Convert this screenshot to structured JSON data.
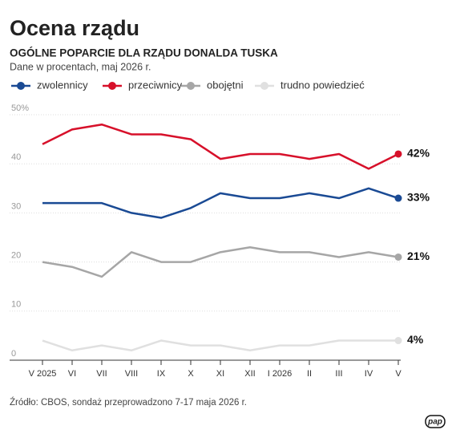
{
  "chart_data": {
    "type": "line",
    "title": "Ocena rządu",
    "subtitle": "OGÓLNE POPARCIE DLA RZĄDU DONALDA TUSKA",
    "note": "Dane w procentach, maj 2026 r.",
    "source": "Źródło: CBOS, sondaż przeprowadzono 7-17 maja 2026 r.",
    "logo": "pap",
    "categories": [
      "V 2025",
      "VI",
      "VII",
      "VIII",
      "IX",
      "X",
      "XI",
      "XII",
      "I 2026",
      "II",
      "III",
      "IV",
      "V"
    ],
    "series": [
      {
        "name": "zwolennicy",
        "color": "#1a4a94",
        "values": [
          32,
          32,
          32,
          30,
          29,
          31,
          34,
          33,
          33,
          34,
          33,
          35,
          33
        ],
        "value_labels": [
          null,
          null,
          null,
          null,
          null,
          null,
          null,
          null,
          null,
          null,
          null,
          null,
          "33%"
        ]
      },
      {
        "name": "przeciwnicy",
        "color": "#d7102a",
        "values": [
          44,
          47,
          48,
          46,
          46,
          45,
          41,
          42,
          42,
          41,
          42,
          39,
          42
        ],
        "value_labels": [
          null,
          null,
          null,
          null,
          null,
          null,
          null,
          null,
          null,
          null,
          null,
          null,
          "42%"
        ]
      },
      {
        "name": "obojętni",
        "color": "#a6a6a6",
        "values": [
          20,
          19,
          17,
          22,
          20,
          20,
          22,
          23,
          22,
          22,
          21,
          22,
          21
        ],
        "value_labels": [
          null,
          null,
          null,
          null,
          null,
          null,
          null,
          null,
          null,
          null,
          null,
          null,
          "21%"
        ]
      },
      {
        "name": "trudno powiedzieć",
        "color": "#e0e0e0",
        "values": [
          4,
          2,
          3,
          2,
          4,
          3,
          3,
          2,
          3,
          3,
          4,
          4,
          4
        ],
        "value_labels": [
          null,
          null,
          null,
          null,
          null,
          null,
          null,
          null,
          null,
          null,
          null,
          null,
          "4%"
        ]
      }
    ],
    "ylim": [
      0,
      50
    ],
    "yticks": [
      {
        "value": 50,
        "label": "50%"
      },
      40,
      30,
      20,
      10,
      0
    ],
    "grid": true
  }
}
